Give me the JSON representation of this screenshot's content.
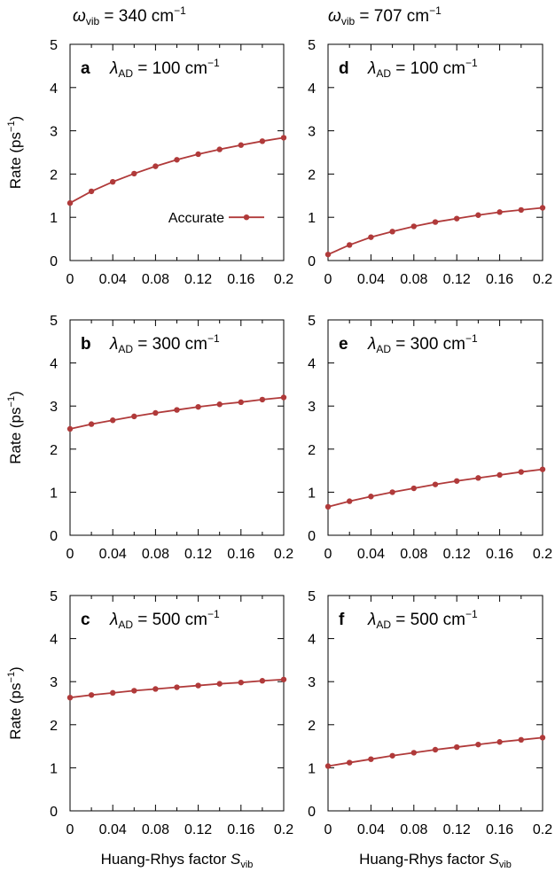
{
  "headers": [
    {
      "omega": "ω",
      "sub": "vib",
      "rest": " = 340 cm",
      "sup": "−1"
    },
    {
      "omega": "ω",
      "sub": "vib",
      "rest": " = 707 cm",
      "sup": "−1"
    }
  ],
  "colors": {
    "series": "#b03a3a",
    "axis": "#000000"
  },
  "legend": {
    "label": "Accurate",
    "panel": "a"
  },
  "chart_data": [
    {
      "type": "line",
      "panel": "a",
      "annotation": {
        "letter": "a",
        "lambda": "λ",
        "sub": "AD",
        "rest": " = 100 cm",
        "sup": "−1"
      },
      "ylabel": {
        "text": "Rate (ps",
        "sup": "−1",
        "close": ")"
      },
      "xlabel": {
        "text": "",
        "italic": "",
        "sub": ""
      },
      "xlim": [
        0,
        0.2
      ],
      "ylim": [
        0,
        5
      ],
      "xticks": [
        "0",
        "0.04",
        "0.08",
        "0.12",
        "0.16",
        "0.2"
      ],
      "yticks": [
        "0",
        "1",
        "2",
        "3",
        "4",
        "5"
      ],
      "series": [
        {
          "name": "Accurate",
          "x": [
            0,
            0.02,
            0.04,
            0.06,
            0.08,
            0.1,
            0.12,
            0.14,
            0.16,
            0.18,
            0.2
          ],
          "y": [
            1.33,
            1.6,
            1.82,
            2.01,
            2.18,
            2.33,
            2.46,
            2.57,
            2.67,
            2.76,
            2.84
          ]
        }
      ]
    },
    {
      "type": "line",
      "panel": "d",
      "annotation": {
        "letter": "d",
        "lambda": "λ",
        "sub": "AD",
        "rest": " = 100 cm",
        "sup": "−1"
      },
      "ylabel": {
        "text": "",
        "sup": "",
        "close": ""
      },
      "xlabel": {
        "text": "",
        "italic": "",
        "sub": ""
      },
      "xlim": [
        0,
        0.2
      ],
      "ylim": [
        0,
        5
      ],
      "xticks": [
        "0",
        "0.04",
        "0.08",
        "0.12",
        "0.16",
        "0.2"
      ],
      "yticks": [
        "0",
        "1",
        "2",
        "3",
        "4",
        "5"
      ],
      "series": [
        {
          "x": [
            0,
            0.02,
            0.04,
            0.06,
            0.08,
            0.1,
            0.12,
            0.14,
            0.16,
            0.18,
            0.2
          ],
          "y": [
            0.14,
            0.36,
            0.54,
            0.67,
            0.79,
            0.89,
            0.97,
            1.05,
            1.12,
            1.17,
            1.22
          ]
        }
      ]
    },
    {
      "type": "line",
      "panel": "b",
      "annotation": {
        "letter": "b",
        "lambda": "λ",
        "sub": "AD",
        "rest": " = 300 cm",
        "sup": "−1"
      },
      "ylabel": {
        "text": "Rate (ps",
        "sup": "−1",
        "close": ")"
      },
      "xlabel": {
        "text": "",
        "italic": "",
        "sub": ""
      },
      "xlim": [
        0,
        0.2
      ],
      "ylim": [
        0,
        5
      ],
      "xticks": [
        "0",
        "0.04",
        "0.08",
        "0.12",
        "0.16",
        "0.2"
      ],
      "yticks": [
        "0",
        "1",
        "2",
        "3",
        "4",
        "5"
      ],
      "series": [
        {
          "x": [
            0,
            0.02,
            0.04,
            0.06,
            0.08,
            0.1,
            0.12,
            0.14,
            0.16,
            0.18,
            0.2
          ],
          "y": [
            2.47,
            2.58,
            2.67,
            2.76,
            2.84,
            2.91,
            2.98,
            3.04,
            3.09,
            3.15,
            3.2
          ]
        }
      ]
    },
    {
      "type": "line",
      "panel": "e",
      "annotation": {
        "letter": "e",
        "lambda": "λ",
        "sub": "AD",
        "rest": " = 300 cm",
        "sup": "−1"
      },
      "ylabel": {
        "text": "",
        "sup": "",
        "close": ""
      },
      "xlabel": {
        "text": "",
        "italic": "",
        "sub": ""
      },
      "xlim": [
        0,
        0.2
      ],
      "ylim": [
        0,
        5
      ],
      "xticks": [
        "0",
        "0.04",
        "0.08",
        "0.12",
        "0.16",
        "0.2"
      ],
      "yticks": [
        "0",
        "1",
        "2",
        "3",
        "4",
        "5"
      ],
      "series": [
        {
          "x": [
            0,
            0.02,
            0.04,
            0.06,
            0.08,
            0.1,
            0.12,
            0.14,
            0.16,
            0.18,
            0.2
          ],
          "y": [
            0.66,
            0.79,
            0.9,
            1.0,
            1.09,
            1.18,
            1.26,
            1.33,
            1.4,
            1.47,
            1.53
          ]
        }
      ]
    },
    {
      "type": "line",
      "panel": "c",
      "annotation": {
        "letter": "c",
        "lambda": "λ",
        "sub": "AD",
        "rest": " = 500 cm",
        "sup": "−1"
      },
      "ylabel": {
        "text": "Rate (ps",
        "sup": "−1",
        "close": ")"
      },
      "xlabel": {
        "text": "Huang-Rhys factor ",
        "italic": "S",
        "sub": "vib"
      },
      "xlim": [
        0,
        0.2
      ],
      "ylim": [
        0,
        5
      ],
      "xticks": [
        "0",
        "0.04",
        "0.08",
        "0.12",
        "0.16",
        "0.2"
      ],
      "yticks": [
        "0",
        "1",
        "2",
        "3",
        "4",
        "5"
      ],
      "series": [
        {
          "x": [
            0,
            0.02,
            0.04,
            0.06,
            0.08,
            0.1,
            0.12,
            0.14,
            0.16,
            0.18,
            0.2
          ],
          "y": [
            2.63,
            2.69,
            2.74,
            2.79,
            2.83,
            2.87,
            2.91,
            2.95,
            2.98,
            3.02,
            3.05
          ]
        }
      ]
    },
    {
      "type": "line",
      "panel": "f",
      "annotation": {
        "letter": "f",
        "lambda": "λ",
        "sub": "AD",
        "rest": " = 500 cm",
        "sup": "−1"
      },
      "ylabel": {
        "text": "",
        "sup": "",
        "close": ""
      },
      "xlabel": {
        "text": "Huang-Rhys factor ",
        "italic": "S",
        "sub": "vib"
      },
      "xlim": [
        0,
        0.2
      ],
      "ylim": [
        0,
        5
      ],
      "xticks": [
        "0",
        "0.04",
        "0.08",
        "0.12",
        "0.16",
        "0.2"
      ],
      "yticks": [
        "0",
        "1",
        "2",
        "3",
        "4",
        "5"
      ],
      "series": [
        {
          "x": [
            0,
            0.02,
            0.04,
            0.06,
            0.08,
            0.1,
            0.12,
            0.14,
            0.16,
            0.18,
            0.2
          ],
          "y": [
            1.04,
            1.12,
            1.2,
            1.28,
            1.35,
            1.42,
            1.48,
            1.54,
            1.6,
            1.65,
            1.7
          ]
        }
      ]
    }
  ]
}
